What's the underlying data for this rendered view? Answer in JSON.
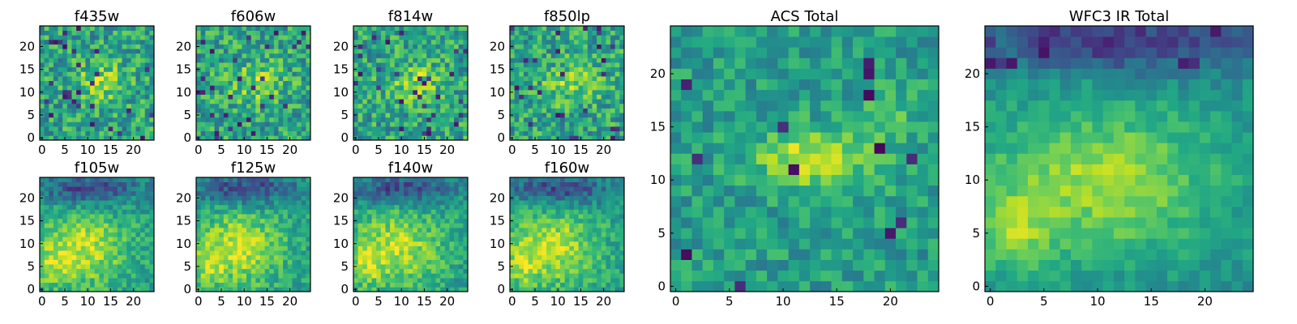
{
  "colors": {
    "viridis": [
      "#440154",
      "#3b528b",
      "#21918c",
      "#5ec962",
      "#fde725"
    ]
  },
  "chart_data": [
    {
      "id": "f435w",
      "type": "heatmap",
      "title": "f435w",
      "grid_size": 25,
      "xticks": [
        "0",
        "5",
        "10",
        "15",
        "20"
      ],
      "yticks": [
        "0",
        "5",
        "10",
        "15",
        "20"
      ],
      "seed": 11,
      "emphasis": "noisy"
    },
    {
      "id": "f606w",
      "type": "heatmap",
      "title": "f606w",
      "grid_size": 25,
      "xticks": [
        "0",
        "5",
        "10",
        "15",
        "20"
      ],
      "yticks": [
        "0",
        "5",
        "10",
        "15",
        "20"
      ],
      "seed": 23,
      "emphasis": "noisy"
    },
    {
      "id": "f814w",
      "type": "heatmap",
      "title": "f814w",
      "grid_size": 25,
      "xticks": [
        "0",
        "5",
        "10",
        "15",
        "20"
      ],
      "yticks": [
        "0",
        "5",
        "10",
        "15",
        "20"
      ],
      "seed": 37,
      "emphasis": "noisy"
    },
    {
      "id": "f850lp",
      "type": "heatmap",
      "title": "f850lp",
      "grid_size": 25,
      "xticks": [
        "0",
        "5",
        "10",
        "15",
        "20"
      ],
      "yticks": [
        "0",
        "5",
        "10",
        "15",
        "20"
      ],
      "seed": 41,
      "emphasis": "noisy"
    },
    {
      "id": "f105w",
      "type": "heatmap",
      "title": "f105w",
      "grid_size": 25,
      "xticks": [
        "0",
        "5",
        "10",
        "15",
        "20"
      ],
      "yticks": [
        "0",
        "5",
        "10",
        "15",
        "20"
      ],
      "seed": 53,
      "emphasis": "smooth"
    },
    {
      "id": "f125w",
      "type": "heatmap",
      "title": "f125w",
      "grid_size": 25,
      "xticks": [
        "0",
        "5",
        "10",
        "15",
        "20"
      ],
      "yticks": [
        "0",
        "5",
        "10",
        "15",
        "20"
      ],
      "seed": 67,
      "emphasis": "smooth"
    },
    {
      "id": "f140w",
      "type": "heatmap",
      "title": "f140w",
      "grid_size": 25,
      "xticks": [
        "0",
        "5",
        "10",
        "15",
        "20"
      ],
      "yticks": [
        "0",
        "5",
        "10",
        "15",
        "20"
      ],
      "seed": 79,
      "emphasis": "smooth"
    },
    {
      "id": "f160w",
      "type": "heatmap",
      "title": "f160w",
      "grid_size": 25,
      "xticks": [
        "0",
        "5",
        "10",
        "15",
        "20"
      ],
      "yticks": [
        "0",
        "5",
        "10",
        "15",
        "20"
      ],
      "seed": 83,
      "emphasis": "smooth"
    },
    {
      "id": "acs_total",
      "type": "heatmap",
      "title": "ACS Total",
      "grid_size": 25,
      "xticks": [
        "0",
        "5",
        "10",
        "15",
        "20"
      ],
      "yticks": [
        "0",
        "5",
        "10",
        "15",
        "20"
      ],
      "seed": 97,
      "emphasis": "acs"
    },
    {
      "id": "wfc3_total",
      "type": "heatmap",
      "title": "WFC3 IR Total",
      "grid_size": 25,
      "xticks": [
        "0",
        "5",
        "10",
        "15",
        "20"
      ],
      "yticks": [
        "0",
        "5",
        "10",
        "15",
        "20"
      ],
      "seed": 101,
      "emphasis": "ir"
    }
  ]
}
